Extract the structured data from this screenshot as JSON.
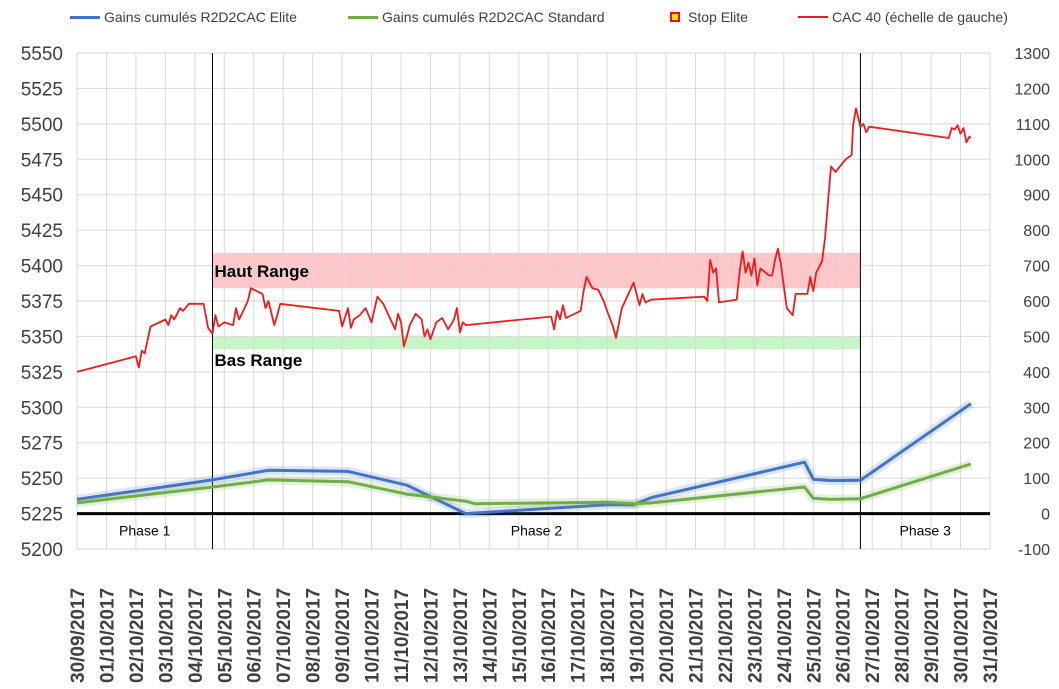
{
  "legend": {
    "elite": "Gains cumulés R2D2CAC Elite",
    "standard": "Gains cumulés R2D2CAC Standard",
    "stop": "Stop Elite",
    "cac": "CAC 40 (échelle de gauche)"
  },
  "colors": {
    "cac": "#ee1c1c",
    "elite": "#4472c4",
    "standard": "#70ad47",
    "haut_band": "#ffc7c7",
    "bas_band": "#c6f5c6",
    "grid": "#d9d9d9",
    "stop_fill": "#f5e400",
    "stop_border": "#e8100c"
  },
  "chart_data": {
    "type": "line",
    "y_left": {
      "min": 5200,
      "max": 5550,
      "step": 25,
      "ticks": [
        5200,
        5225,
        5250,
        5275,
        5300,
        5325,
        5350,
        5375,
        5400,
        5425,
        5450,
        5475,
        5500,
        5525,
        5550
      ]
    },
    "y_right": {
      "min": -100,
      "max": 1300,
      "step": 100,
      "ticks": [
        -100,
        0,
        100,
        200,
        300,
        400,
        500,
        600,
        700,
        800,
        900,
        1000,
        1100,
        1200,
        1300
      ]
    },
    "x_dates": [
      "30/09/2017",
      "01/10/2017",
      "02/10/2017",
      "03/10/2017",
      "04/10/2017",
      "05/10/2017",
      "06/10/2017",
      "07/10/2017",
      "08/10/2017",
      "09/10/2017",
      "10/10/2017",
      "11/10/2017",
      "12/10/2017",
      "13/10/2017",
      "14/10/2017",
      "15/10/2017",
      "16/10/2017",
      "17/10/2017",
      "18/10/2017",
      "19/10/2017",
      "20/10/2017",
      "21/10/2017",
      "22/10/2017",
      "23/10/2017",
      "24/10/2017",
      "25/10/2017",
      "26/10/2017",
      "27/10/2017",
      "28/10/2017",
      "29/10/2017",
      "30/10/2017",
      "31/10/2017"
    ],
    "bands": [
      {
        "label": "Haut Range",
        "from_date": 4.6,
        "to_date": 26.6,
        "y_low": 5384,
        "y_high": 5409
      },
      {
        "label": "Bas Range",
        "from_date": 4.6,
        "to_date": 26.6,
        "y_low": 5341,
        "y_high": 5350
      }
    ],
    "phases": [
      {
        "label": "Phase 1",
        "from": 0,
        "to": 4.6
      },
      {
        "label": "Phase 2",
        "from": 4.6,
        "to": 26.6
      },
      {
        "label": "Phase 3",
        "from": 26.6,
        "to": 31
      }
    ],
    "phase_dividers": [
      4.6,
      26.6
    ],
    "series": [
      {
        "name": "CAC 40 (échelle de gauche)",
        "axis": "left",
        "points": [
          [
            0,
            5325
          ],
          [
            2,
            5336
          ],
          [
            2.1,
            5328
          ],
          [
            2.2,
            5340
          ],
          [
            2.3,
            5338
          ],
          [
            2.4,
            5348
          ],
          [
            2.5,
            5357
          ],
          [
            2.7,
            5359
          ],
          [
            3,
            5362
          ],
          [
            3.1,
            5358
          ],
          [
            3.2,
            5365
          ],
          [
            3.3,
            5362
          ],
          [
            3.4,
            5366
          ],
          [
            3.5,
            5370
          ],
          [
            3.6,
            5368
          ],
          [
            3.8,
            5373
          ],
          [
            4,
            5373
          ],
          [
            4.3,
            5373
          ],
          [
            4.45,
            5356
          ],
          [
            4.6,
            5352
          ],
          [
            4.7,
            5365
          ],
          [
            4.8,
            5357
          ],
          [
            5,
            5360
          ],
          [
            5.3,
            5358
          ],
          [
            5.4,
            5370
          ],
          [
            5.5,
            5362
          ],
          [
            5.6,
            5366
          ],
          [
            5.8,
            5375
          ],
          [
            5.9,
            5384
          ],
          [
            6.1,
            5382
          ],
          [
            6.3,
            5380
          ],
          [
            6.4,
            5370
          ],
          [
            6.5,
            5375
          ],
          [
            6.7,
            5358
          ],
          [
            6.8,
            5365
          ],
          [
            6.9,
            5373
          ],
          [
            8.9,
            5368
          ],
          [
            9,
            5357
          ],
          [
            9.2,
            5370
          ],
          [
            9.3,
            5356
          ],
          [
            9.4,
            5362
          ],
          [
            9.6,
            5365
          ],
          [
            9.8,
            5370
          ],
          [
            10,
            5360
          ],
          [
            10.2,
            5378
          ],
          [
            10.4,
            5373
          ],
          [
            10.6,
            5364
          ],
          [
            10.8,
            5355
          ],
          [
            10.9,
            5366
          ],
          [
            11,
            5360
          ],
          [
            11.1,
            5343
          ],
          [
            11.2,
            5350
          ],
          [
            11.3,
            5358
          ],
          [
            11.5,
            5366
          ],
          [
            11.7,
            5362
          ],
          [
            11.8,
            5350
          ],
          [
            11.9,
            5355
          ],
          [
            12,
            5348
          ],
          [
            12.2,
            5360
          ],
          [
            12.4,
            5363
          ],
          [
            12.6,
            5355
          ],
          [
            12.8,
            5362
          ],
          [
            12.9,
            5370
          ],
          [
            13,
            5353
          ],
          [
            13.1,
            5360
          ],
          [
            13.2,
            5358
          ],
          [
            16.1,
            5364
          ],
          [
            16.2,
            5355
          ],
          [
            16.3,
            5368
          ],
          [
            16.4,
            5362
          ],
          [
            16.5,
            5372
          ],
          [
            16.6,
            5363
          ],
          [
            17.1,
            5368
          ],
          [
            17.2,
            5382
          ],
          [
            17.3,
            5392
          ],
          [
            17.5,
            5384
          ],
          [
            17.7,
            5383
          ],
          [
            17.9,
            5374
          ],
          [
            18,
            5368
          ],
          [
            18.2,
            5357
          ],
          [
            18.3,
            5349
          ],
          [
            18.5,
            5370
          ],
          [
            18.9,
            5388
          ],
          [
            19.1,
            5372
          ],
          [
            19.2,
            5380
          ],
          [
            19.3,
            5374
          ],
          [
            19.5,
            5376
          ],
          [
            21.3,
            5378
          ],
          [
            21.4,
            5375
          ],
          [
            21.5,
            5404
          ],
          [
            21.6,
            5395
          ],
          [
            21.7,
            5398
          ],
          [
            21.8,
            5374
          ],
          [
            22.4,
            5376
          ],
          [
            22.5,
            5396
          ],
          [
            22.6,
            5410
          ],
          [
            22.7,
            5395
          ],
          [
            22.8,
            5402
          ],
          [
            22.9,
            5393
          ],
          [
            23,
            5405
          ],
          [
            23.1,
            5386
          ],
          [
            23.2,
            5398
          ],
          [
            23.5,
            5393
          ],
          [
            23.6,
            5393
          ],
          [
            23.7,
            5404
          ],
          [
            23.8,
            5412
          ],
          [
            23.9,
            5401
          ],
          [
            24.1,
            5370
          ],
          [
            24.3,
            5365
          ],
          [
            24.4,
            5380
          ],
          [
            24.8,
            5380
          ],
          [
            24.9,
            5392
          ],
          [
            25,
            5382
          ],
          [
            25.1,
            5395
          ],
          [
            25.3,
            5403
          ],
          [
            25.4,
            5420
          ],
          [
            25.5,
            5445
          ],
          [
            25.6,
            5470
          ],
          [
            25.75,
            5466
          ],
          [
            26.1,
            5475
          ],
          [
            26.3,
            5478
          ],
          [
            26.35,
            5499
          ],
          [
            26.45,
            5511
          ],
          [
            26.6,
            5498
          ],
          [
            26.7,
            5500
          ],
          [
            26.8,
            5494
          ],
          [
            26.9,
            5498
          ],
          [
            29.6,
            5490
          ],
          [
            29.7,
            5497
          ],
          [
            29.8,
            5496
          ],
          [
            29.9,
            5499
          ],
          [
            30,
            5493
          ],
          [
            30.1,
            5497
          ],
          [
            30.2,
            5487
          ],
          [
            30.3,
            5491
          ],
          [
            30.35,
            5490
          ]
        ]
      },
      {
        "name": "Gains cumulés R2D2CAC Elite",
        "axis": "right",
        "points": [
          [
            0,
            40
          ],
          [
            4.6,
            95
          ],
          [
            6.5,
            122
          ],
          [
            9.2,
            119
          ],
          [
            11.2,
            80
          ],
          [
            13.2,
            0
          ],
          [
            18,
            25
          ],
          [
            18.9,
            25
          ],
          [
            19.5,
            45
          ],
          [
            24.7,
            145
          ],
          [
            25,
            97
          ],
          [
            25.6,
            93
          ],
          [
            26.6,
            94
          ],
          [
            30.35,
            310
          ]
        ]
      },
      {
        "name": "Gains cumulés R2D2CAC Standard",
        "axis": "right",
        "points": [
          [
            0,
            30
          ],
          [
            4.6,
            75
          ],
          [
            6.5,
            95
          ],
          [
            9.2,
            90
          ],
          [
            11.2,
            55
          ],
          [
            13.2,
            35
          ],
          [
            13.5,
            28
          ],
          [
            18,
            32
          ],
          [
            18.9,
            28
          ],
          [
            19.5,
            30
          ],
          [
            24.7,
            75
          ],
          [
            25,
            43
          ],
          [
            25.6,
            40
          ],
          [
            26.6,
            42
          ],
          [
            30.35,
            140
          ]
        ]
      }
    ]
  }
}
